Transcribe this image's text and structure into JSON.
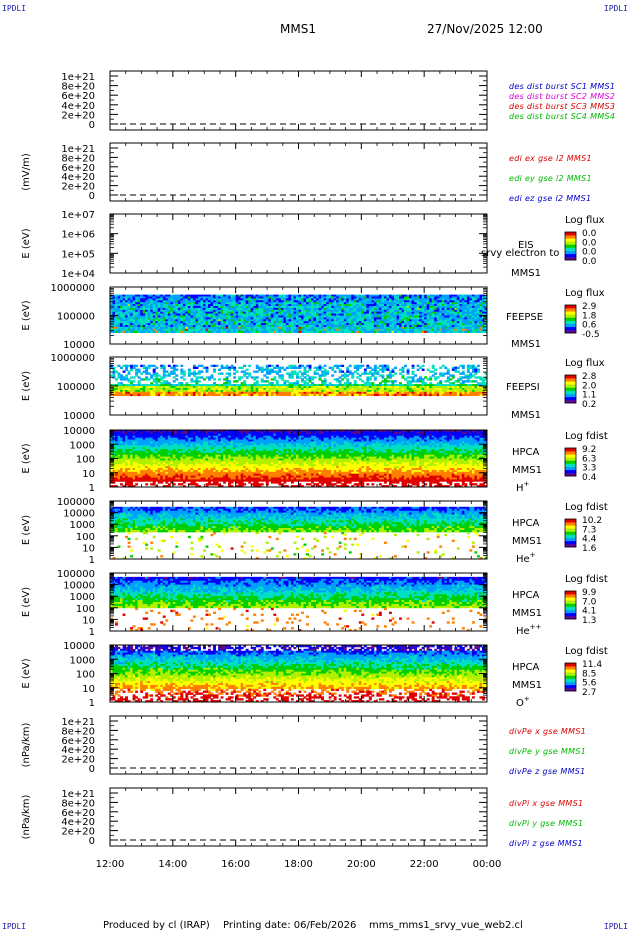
{
  "header": {
    "corner_tl": "IPDLI",
    "corner_tr": "IPDLI",
    "corner_bl": "IPDLI",
    "corner_br": "IPDLI",
    "title": "MMS1",
    "datetime": "27/Nov/2025 12:00"
  },
  "footer": {
    "produced_by": "Produced by cl (IRAP)",
    "printing_date": "Printing date: 06/Feb/2026",
    "script": "mms_mms1_srvy_vue_web2.cl"
  },
  "colors": {
    "red": "#dd0000",
    "magenta": "#dd00dd",
    "green": "#00bb00",
    "blue": "#0000cc",
    "spectrogram_scale": [
      "#5a0a8c",
      "#0000ff",
      "#00a0ff",
      "#00e0c0",
      "#00d000",
      "#b0f000",
      "#ffff00",
      "#ff8000",
      "#e00000"
    ]
  },
  "chart_data": {
    "type": "heatmap",
    "x_tick_labels": [
      "12:00",
      "14:00",
      "16:00",
      "18:00",
      "20:00",
      "22:00",
      "00:00"
    ],
    "x_range": [
      "27/Nov/2025 12:00",
      "28/Nov/2025 00:00"
    ],
    "panels": [
      {
        "id": "des",
        "type": "line",
        "ylabel": "",
        "y_ticks": [
          "1e+21",
          "8e+20",
          "6e+20",
          "4e+20",
          "2e+20",
          "0"
        ],
        "legend": [
          {
            "text": "des dist burst SC1 MMS1",
            "color": "#0000cc"
          },
          {
            "text": "des dist burst SC2 MMS2",
            "color": "#dd00dd"
          },
          {
            "text": "des dist burst SC3 MMS3",
            "color": "#dd0000"
          },
          {
            "text": "des dist burst SC4 MMS4",
            "color": "#00bb00"
          }
        ],
        "zero_line": "dashed"
      },
      {
        "id": "edi",
        "type": "line",
        "ylabel": "(mV/m)",
        "y_ticks": [
          "1e+21",
          "8e+20",
          "6e+20",
          "4e+20",
          "2e+20",
          "0"
        ],
        "legend": [
          {
            "text": "edi ex gse l2 MMS1",
            "color": "#dd0000"
          },
          {
            "text": "edi ey gse l2 MMS1",
            "color": "#00bb00"
          },
          {
            "text": "edi ez gse l2 MMS1",
            "color": "#0000cc"
          }
        ],
        "zero_line": "dashed"
      },
      {
        "id": "eis",
        "type": "heatmap",
        "ylabel": "E (eV)",
        "y_ticks": [
          "1e+07",
          "1e+06",
          "1e+05",
          "1e+04"
        ],
        "right_labels": [
          "EIS",
          "srvy electron to",
          "MMS1"
        ],
        "colorbar_title": "Log flux",
        "colorbar_ticks": [
          "0.0",
          "0.0",
          "0.0",
          "0.0"
        ],
        "empty": true
      },
      {
        "id": "feepse",
        "type": "heatmap",
        "ylabel": "E (eV)",
        "y_ticks": [
          "1000000",
          "100000",
          "10000"
        ],
        "right_labels": [
          "FEEPSE",
          "MMS1"
        ],
        "colorbar_title": "Log flux",
        "colorbar_ticks": [
          "2.9",
          "1.8",
          "0.6",
          "-0.5"
        ]
      },
      {
        "id": "feepsi",
        "type": "heatmap",
        "ylabel": "E (eV)",
        "y_ticks": [
          "1000000",
          "100000",
          "10000"
        ],
        "right_labels": [
          "FEEPSI",
          "MMS1"
        ],
        "colorbar_title": "Log flux",
        "colorbar_ticks": [
          "2.8",
          "2.0",
          "1.1",
          "0.2"
        ]
      },
      {
        "id": "hpca_h",
        "type": "heatmap",
        "ylabel": "E (eV)",
        "y_ticks": [
          "10000",
          "1000",
          "100",
          "10",
          "1"
        ],
        "right_labels": [
          "HPCA",
          "MMS1"
        ],
        "species": "H",
        "species_sup": "+",
        "colorbar_title": "Log fdist",
        "colorbar_ticks": [
          "9.2",
          "6.3",
          "3.3",
          "0.4"
        ]
      },
      {
        "id": "hpca_he",
        "type": "heatmap",
        "ylabel": "E (eV)",
        "y_ticks": [
          "100000",
          "10000",
          "1000",
          "100",
          "10",
          "1"
        ],
        "right_labels": [
          "HPCA",
          "MMS1"
        ],
        "species": "He",
        "species_sup": "+",
        "colorbar_title": "Log fdist",
        "colorbar_ticks": [
          "10.2",
          "7.3",
          "4.4",
          "1.6"
        ]
      },
      {
        "id": "hpca_hepp",
        "type": "heatmap",
        "ylabel": "E (eV)",
        "y_ticks": [
          "100000",
          "10000",
          "1000",
          "100",
          "10",
          "1"
        ],
        "right_labels": [
          "HPCA",
          "MMS1"
        ],
        "species": "He",
        "species_sup": "++",
        "colorbar_title": "Log fdist",
        "colorbar_ticks": [
          "9.9",
          "7.0",
          "4.1",
          "1.3"
        ]
      },
      {
        "id": "hpca_o",
        "type": "heatmap",
        "ylabel": "E (eV)",
        "y_ticks": [
          "10000",
          "1000",
          "100",
          "10",
          "1"
        ],
        "right_labels": [
          "HPCA",
          "MMS1"
        ],
        "species": "O",
        "species_sup": "+",
        "colorbar_title": "Log fdist",
        "colorbar_ticks": [
          "11.4",
          "8.5",
          "5.6",
          "2.7"
        ]
      },
      {
        "id": "divpe",
        "type": "line",
        "ylabel": "(nPa/km)",
        "y_ticks": [
          "1e+21",
          "8e+20",
          "6e+20",
          "4e+20",
          "2e+20",
          "0"
        ],
        "legend": [
          {
            "text": "divPe x gse MMS1",
            "color": "#dd0000"
          },
          {
            "text": "divPe y gse MMS1",
            "color": "#00bb00"
          },
          {
            "text": "divPe z gse MMS1",
            "color": "#0000cc"
          }
        ],
        "zero_line": "dashed"
      },
      {
        "id": "divpi",
        "type": "line",
        "ylabel": "(nPa/km)",
        "y_ticks": [
          "1e+21",
          "8e+20",
          "6e+20",
          "4e+20",
          "2e+20",
          "0"
        ],
        "legend": [
          {
            "text": "divPi x gse MMS1",
            "color": "#dd0000"
          },
          {
            "text": "divPi y gse MMS1",
            "color": "#00bb00"
          },
          {
            "text": "divPi z gse MMS1",
            "color": "#0000cc"
          }
        ],
        "zero_line": "dashed"
      }
    ]
  }
}
